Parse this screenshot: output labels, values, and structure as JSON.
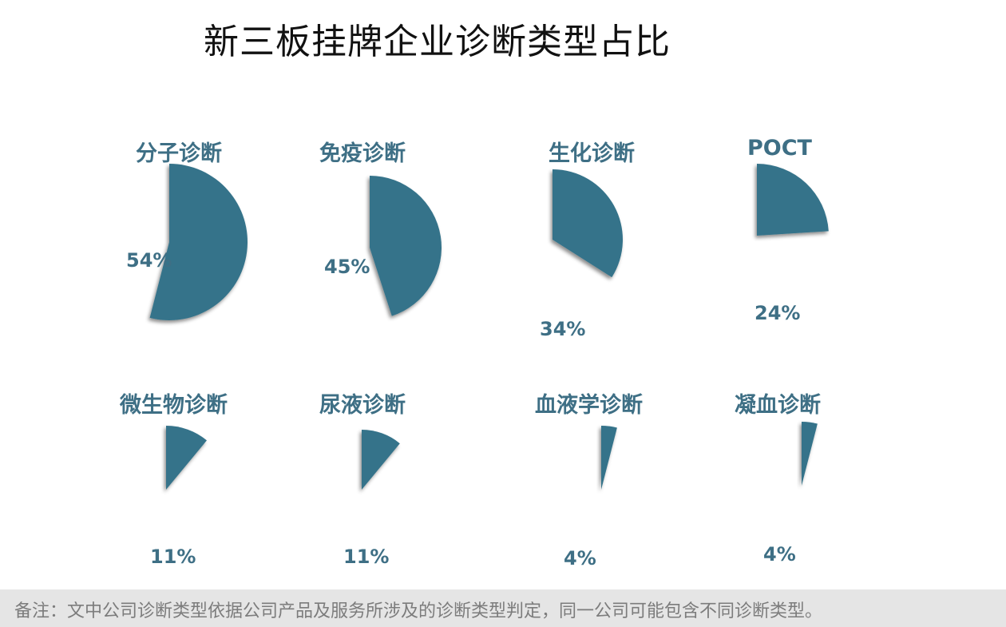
{
  "title": "新三板挂牌企业诊断类型占比",
  "footnote": "备注：文中公司诊断类型依据公司产品及服务所涉及的诊断类型判定，同一公司可能包含不同诊断类型。",
  "colors": {
    "slice": "#34738a",
    "label": "#3e6f85"
  },
  "chart_data": {
    "type": "pie",
    "title": "新三板挂牌企业诊断类型占比",
    "unit": "%",
    "items": [
      {
        "category": "分子诊断",
        "value": 54,
        "label": "54%"
      },
      {
        "category": "免疫诊断",
        "value": 45,
        "label": "45%"
      },
      {
        "category": "生化诊断",
        "value": 34,
        "label": "34%"
      },
      {
        "category": "POCT",
        "value": 24,
        "label": "24%"
      },
      {
        "category": "微生物诊断",
        "value": 11,
        "label": "11%"
      },
      {
        "category": "尿液诊断",
        "value": 11,
        "label": "11%"
      },
      {
        "category": "血液学诊断",
        "value": 4,
        "label": "4%"
      },
      {
        "category": "凝血诊断",
        "value": 4,
        "label": "4%"
      }
    ]
  }
}
